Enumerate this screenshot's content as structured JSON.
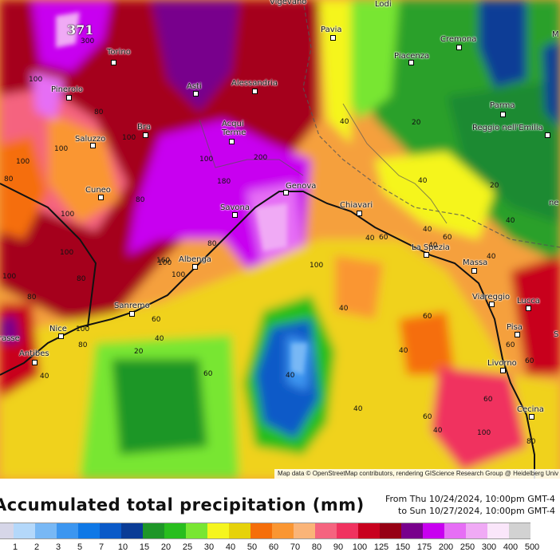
{
  "map": {
    "max_label": "371",
    "attribution": "Map data © OpenStreetMap contributors, rendering GIScience Research Group @ Heidelberg Univ",
    "cities": [
      {
        "name": "Vigevano"
      },
      {
        "name": "Lodi"
      },
      {
        "name": "Pavia"
      },
      {
        "name": "Cremona"
      },
      {
        "name": "Torino"
      },
      {
        "name": "Piacenza"
      },
      {
        "name": "Pinerolo"
      },
      {
        "name": "Asti"
      },
      {
        "name": "Alessandria"
      },
      {
        "name": "Parma"
      },
      {
        "name": "Acqui Terme"
      },
      {
        "name": "Bra"
      },
      {
        "name": "Reggio nell'Emilia"
      },
      {
        "name": "Saluzzo"
      },
      {
        "name": "Cuneo"
      },
      {
        "name": "Genova"
      },
      {
        "name": "Chiavari"
      },
      {
        "name": "Savona"
      },
      {
        "name": "La Spezia"
      },
      {
        "name": "Albenga"
      },
      {
        "name": "Massa"
      },
      {
        "name": "Viareggio"
      },
      {
        "name": "Lucca"
      },
      {
        "name": "Sanremo"
      },
      {
        "name": "Nice"
      },
      {
        "name": "Pisa"
      },
      {
        "name": "Antibes"
      },
      {
        "name": "Livorno"
      },
      {
        "name": "Cecina"
      },
      {
        "name": "rasse"
      },
      {
        "name": "M"
      },
      {
        "name": "ne"
      },
      {
        "name": "S"
      }
    ],
    "value_labels": [
      "300",
      "100",
      "100",
      "100",
      "100",
      "80",
      "100",
      "200",
      "180",
      "160",
      "100",
      "80",
      "40",
      "20",
      "40",
      "100",
      "80",
      "100",
      "60",
      "40",
      "20",
      "60",
      "80",
      "40",
      "60",
      "40",
      "40",
      "60",
      "40",
      "100",
      "60",
      "80",
      "100",
      "80",
      "40",
      "20",
      "40",
      "60",
      "60",
      "60",
      "100",
      "40",
      "40",
      "40",
      "40",
      "60",
      "80",
      "100",
      "80",
      "100",
      "40"
    ]
  },
  "title": "Accumulated total precipitation (mm)",
  "period": {
    "from": "From Thu 10/24/2024, 10:00pm GMT-4",
    "to": "to Sun 10/27/2024, 10:00pm GMT-4"
  },
  "legend": {
    "colors": [
      "#d6d6e8",
      "#b4d8fa",
      "#78b8f5",
      "#3c96f0",
      "#0f78e6",
      "#0a5ac8",
      "#0a3c96",
      "#1e9628",
      "#28be1e",
      "#78e632",
      "#f5f51e",
      "#e6d20a",
      "#f56e0a",
      "#fa9632",
      "#fab478",
      "#f5647f",
      "#f0325f",
      "#c8001e",
      "#960014",
      "#78008c",
      "#c800f0",
      "#e66ef5",
      "#f0aaf5",
      "#fae6fa",
      "#d2d2d2"
    ],
    "ticks": [
      "1",
      "1",
      "2",
      "3",
      "5",
      "7",
      "10",
      "15",
      "20",
      "25",
      "30",
      "40",
      "50",
      "60",
      "70",
      "80",
      "90",
      "100",
      "125",
      "150",
      "175",
      "200",
      "250",
      "300",
      "400",
      "500"
    ]
  }
}
